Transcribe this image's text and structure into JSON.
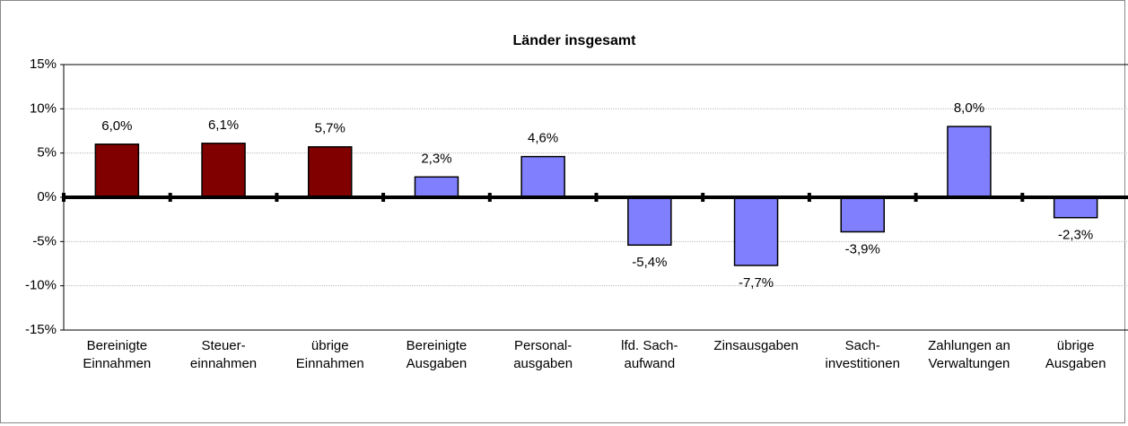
{
  "chart_data": {
    "type": "bar",
    "title": "Länder insgesamt",
    "categories": [
      "Bereinigte\nEinnahmen",
      "Steuer-\neinnahmen",
      "übrige\nEinnahmen",
      "Bereinigte\nAusgaben",
      "Personal-\nausgaben",
      "lfd. Sach-\naufwand",
      "Zinsausgaben",
      "Sach-\ninvestitionen",
      "Zahlungen an\nVerwaltungen",
      "übrige\nAusgaben"
    ],
    "values": [
      6.0,
      6.1,
      5.7,
      2.3,
      4.6,
      -5.4,
      -7.7,
      -3.9,
      8.0,
      -2.3
    ],
    "value_labels": [
      "6,0%",
      "6,1%",
      "5,7%",
      "2,3%",
      "4,6%",
      "-5,4%",
      "-7,7%",
      "-3,9%",
      "8,0%",
      "-2,3%"
    ],
    "colors": [
      "#800000",
      "#800000",
      "#800000",
      "#8080ff",
      "#8080ff",
      "#8080ff",
      "#8080ff",
      "#8080ff",
      "#8080ff",
      "#8080ff"
    ],
    "ylim": [
      -15,
      15
    ],
    "yticks": [
      {
        "value": -15,
        "label": "-15%"
      },
      {
        "value": -10,
        "label": "-10%"
      },
      {
        "value": -5,
        "label": "-5%"
      },
      {
        "value": 0,
        "label": "0%"
      },
      {
        "value": 5,
        "label": "5%"
      },
      {
        "value": 10,
        "label": "10%"
      },
      {
        "value": 15,
        "label": "15%"
      }
    ],
    "grid": true
  }
}
